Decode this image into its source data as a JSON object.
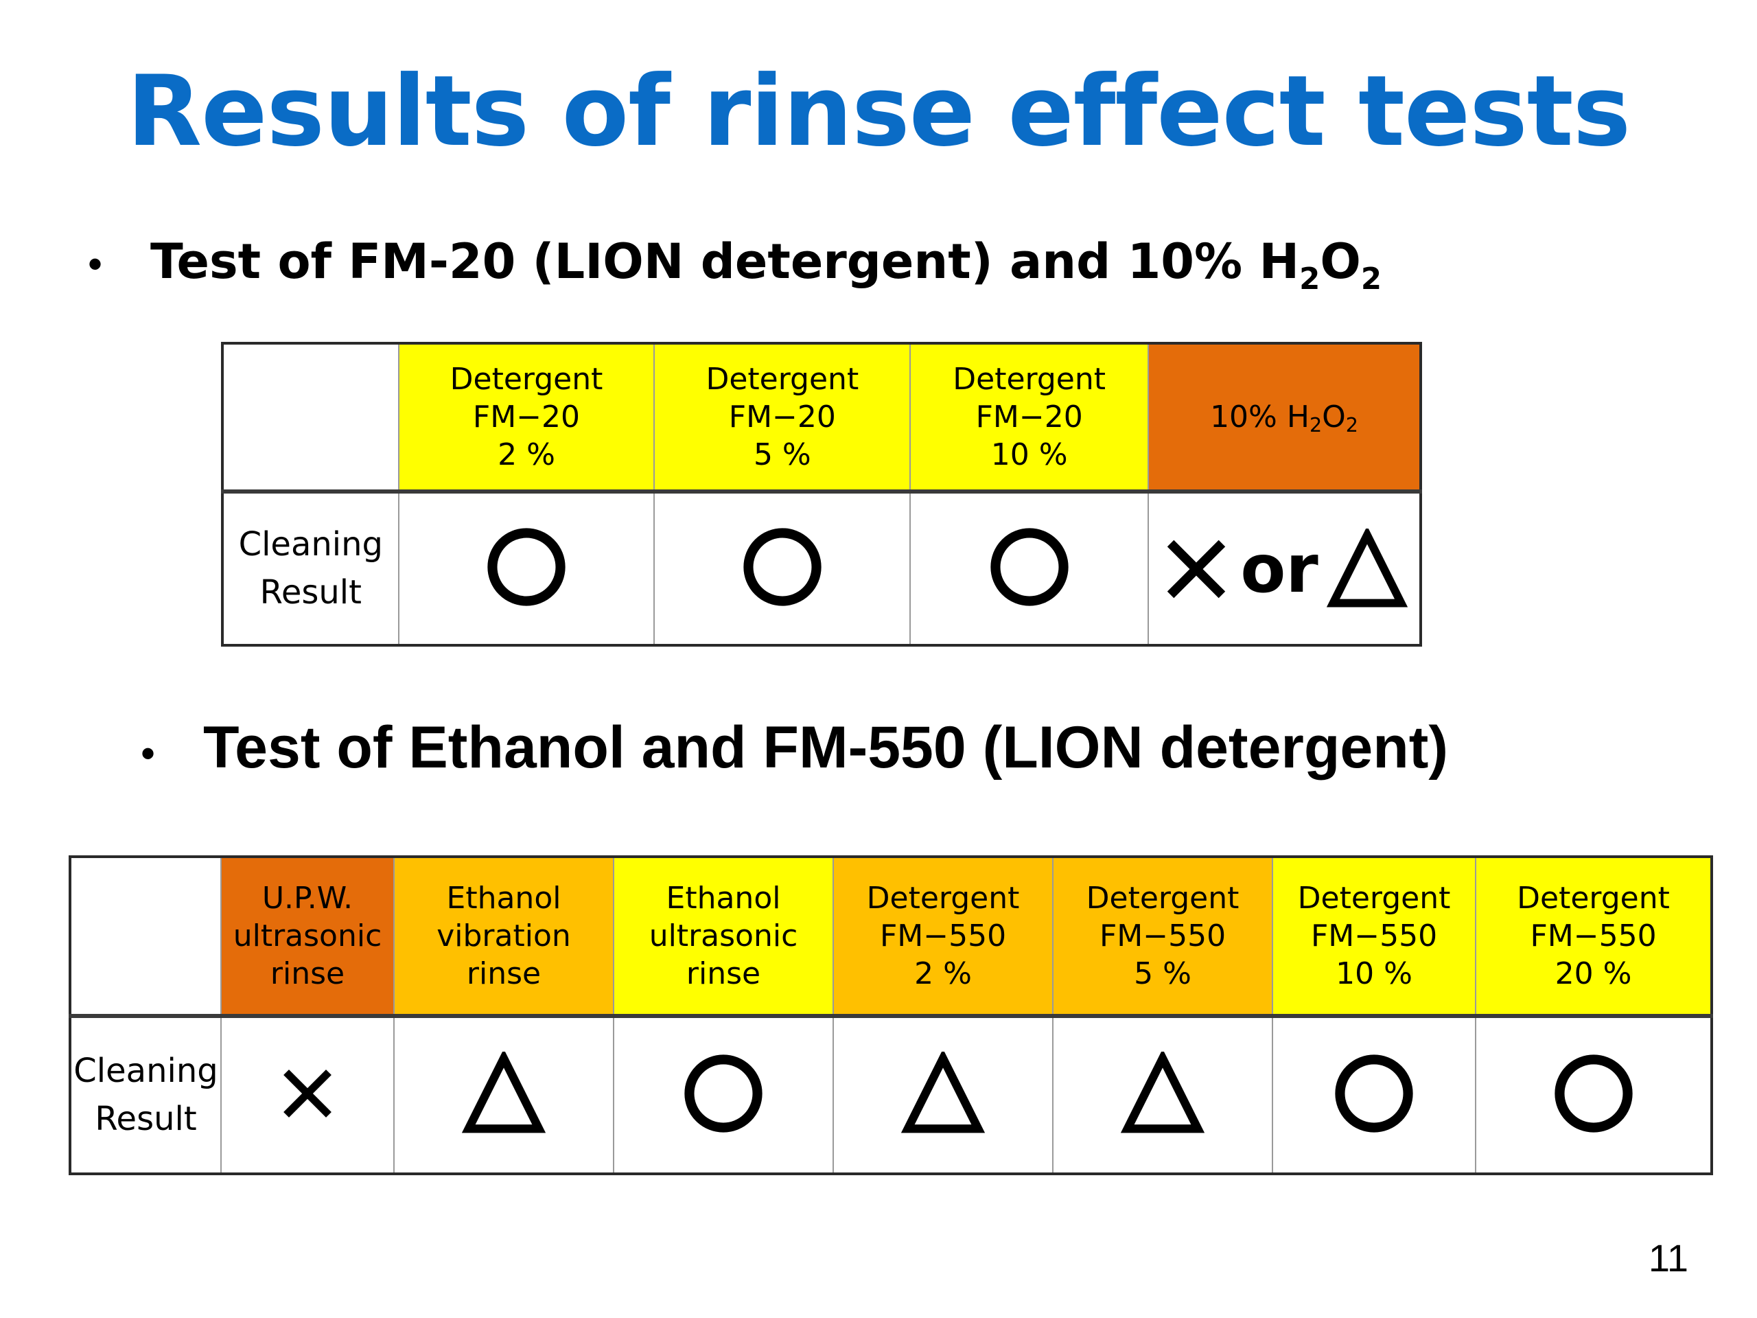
{
  "slide": {
    "title": "Results of rinse effect tests",
    "page_number": "11"
  },
  "section1": {
    "bullet": "•",
    "heading_prefix": "Test of FM-20 (LION detergent) and 10% H",
    "heading_sub1": "2",
    "heading_mid": "O",
    "heading_sub2": "2",
    "table": {
      "row_label_line1": "Cleaning",
      "row_label_line2": "Result",
      "columns": [
        {
          "line1": "Detergent",
          "line2": "FM−20",
          "line3": "2 %",
          "color": "#ffff00",
          "result": "○"
        },
        {
          "line1": "Detergent",
          "line2": "FM−20",
          "line3": "5 %",
          "color": "#ffff00",
          "result": "○"
        },
        {
          "line1": "Detergent",
          "line2": "FM−20",
          "line3": "10 %",
          "color": "#ffff00",
          "result": "○"
        }
      ],
      "h2o2_column": {
        "label_prefix": "10% H",
        "label_sub1": "2",
        "label_mid": "O",
        "label_sub2": "2",
        "color": "#e46c0a",
        "result_or": "or",
        "result": "× or △"
      }
    }
  },
  "section2": {
    "bullet": "•",
    "heading": "Test of Ethanol and FM-550 (LION detergent)",
    "table": {
      "row_label_line1": "Cleaning",
      "row_label_line2": "Result",
      "columns": [
        {
          "line1": "U.P.W.",
          "line2": "ultrasonic",
          "line3": "rinse",
          "color": "#e46c0a",
          "result": "×"
        },
        {
          "line1": "Ethanol",
          "line2": "vibration",
          "line3": "rinse",
          "color": "#ffc000",
          "result": "△"
        },
        {
          "line1": "Ethanol",
          "line2": "ultrasonic",
          "line3": "rinse",
          "color": "#ffff00",
          "result": "○"
        },
        {
          "line1": "Detergent",
          "line2": "FM−550",
          "line3": "2 %",
          "color": "#ffc000",
          "result": "△"
        },
        {
          "line1": "Detergent",
          "line2": "FM−550",
          "line3": "5 %",
          "color": "#ffc000",
          "result": "△"
        },
        {
          "line1": "Detergent",
          "line2": "FM−550",
          "line3": "10 %",
          "color": "#ffff00",
          "result": "○"
        },
        {
          "line1": "Detergent",
          "line2": "FM−550",
          "line3": "20 %",
          "color": "#ffff00",
          "result": "○"
        }
      ]
    }
  }
}
